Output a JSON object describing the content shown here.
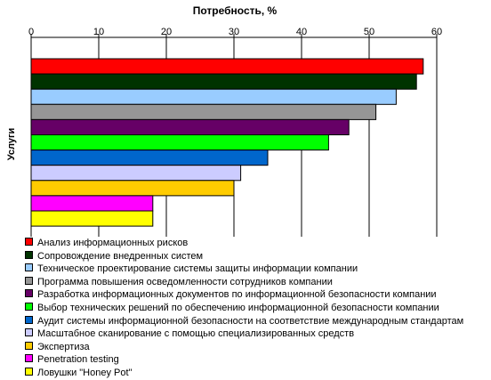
{
  "chart_data": {
    "type": "bar",
    "orientation": "horizontal",
    "title": "Потребность, %",
    "ylabel": "Услуги",
    "xlim": [
      0,
      60
    ],
    "xticks": [
      0,
      10,
      20,
      30,
      40,
      50,
      60
    ],
    "grid": "vertical",
    "legend_position": "bottom",
    "categories": [
      "Анализ информационных рисков",
      "Сопровождение внедренных систем",
      "Техническое проектирование системы защиты информации компании",
      "Программа повышения осведомленности сотрудников компании",
      "Разработка информационных документов по информационной безопасности компании",
      "Выбор технических решений по обеспечению информационной безопасности компании",
      "Аудит системы информационной безопасности на соответствие международным стандартам",
      "Масштабное сканирование с помощью специализированных средств",
      "Экспертиза",
      "Penetration testing",
      "Ловушки \"Honey Pot\""
    ],
    "values": [
      58,
      57,
      54,
      51,
      47,
      44,
      35,
      31,
      30,
      18,
      18
    ],
    "colors": [
      "#ff0000",
      "#003300",
      "#99ccff",
      "#969696",
      "#660066",
      "#00ff00",
      "#0066cc",
      "#ccccff",
      "#ffcc00",
      "#ff00ff",
      "#ffff00"
    ]
  }
}
